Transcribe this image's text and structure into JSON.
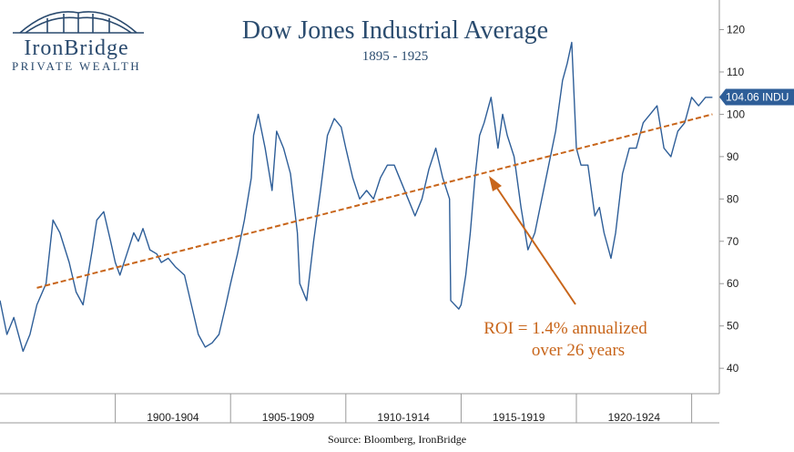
{
  "logo": {
    "name": "IronBridge",
    "tagline": "PRIVATE WEALTH"
  },
  "chart_data": {
    "type": "line",
    "title": "Dow Jones Industrial Average",
    "subtitle": "1895 - 1925",
    "ylim": [
      34,
      127
    ],
    "y_ticks": [
      40,
      50,
      60,
      70,
      80,
      90,
      100,
      110,
      120
    ],
    "x_range": [
      1895.0,
      1926.2
    ],
    "period_labels": [
      {
        "label": "1900-1904",
        "from": 1900.0,
        "to": 1905.0
      },
      {
        "label": "1905-1909",
        "from": 1905.0,
        "to": 1910.0
      },
      {
        "label": "1910-1914",
        "from": 1910.0,
        "to": 1915.0
      },
      {
        "label": "1915-1919",
        "from": 1915.0,
        "to": 1920.0
      },
      {
        "label": "1920-1924",
        "from": 1920.0,
        "to": 1925.0
      }
    ],
    "series": [
      {
        "values_x": [
          1895.0,
          1895.3,
          1895.6,
          1896.0,
          1896.3,
          1896.6,
          1897.0,
          1897.3,
          1897.6,
          1898.0,
          1898.3,
          1898.6,
          1899.0,
          1899.2,
          1899.5,
          1899.8,
          1900.0,
          1900.2,
          1900.5,
          1900.8,
          1901.0,
          1901.2,
          1901.5,
          1901.8,
          1902.0,
          1902.3,
          1902.6,
          1903.0,
          1903.3,
          1903.6,
          1903.9,
          1904.2,
          1904.5,
          1904.8,
          1905.0,
          1905.3,
          1905.6,
          1905.9,
          1906.0,
          1906.2,
          1906.5,
          1906.8,
          1907.0,
          1907.3,
          1907.6,
          1907.9,
          1908.0,
          1908.3,
          1908.6,
          1908.9,
          1909.2,
          1909.5,
          1909.8,
          1910.0,
          1910.3,
          1910.6,
          1910.9,
          1911.2,
          1911.5,
          1911.8,
          1912.1,
          1912.4,
          1912.7,
          1913.0,
          1913.3,
          1913.6,
          1913.9,
          1914.2,
          1914.5,
          1914.55,
          1914.9,
          1915.0,
          1915.2,
          1915.4,
          1915.6,
          1915.8,
          1916.0,
          1916.3,
          1916.6,
          1916.8,
          1917.0,
          1917.3,
          1917.6,
          1917.9,
          1918.2,
          1918.5,
          1918.8,
          1919.1,
          1919.4,
          1919.6,
          1919.8,
          1920.0,
          1920.2,
          1920.5,
          1920.8,
          1921.0,
          1921.2,
          1921.5,
          1921.7,
          1922.0,
          1922.3,
          1922.6,
          1922.9,
          1923.2,
          1923.5,
          1923.8,
          1924.1,
          1924.4,
          1924.7,
          1925.0,
          1925.3,
          1925.6,
          1925.9
        ],
        "values_y": [
          56,
          48,
          52,
          44,
          48,
          55,
          60,
          75,
          72,
          65,
          58,
          55,
          68,
          75,
          77,
          70,
          65,
          62,
          67,
          72,
          70,
          73,
          68,
          67,
          65,
          66,
          64,
          62,
          55,
          48,
          45,
          46,
          48,
          55,
          60,
          67,
          75,
          85,
          95,
          100,
          92,
          82,
          96,
          92,
          86,
          72,
          60,
          56,
          70,
          82,
          95,
          99,
          97,
          92,
          85,
          80,
          82,
          80,
          85,
          88,
          88,
          84,
          80,
          76,
          80,
          87,
          92,
          85,
          80,
          56,
          54,
          55,
          62,
          72,
          85,
          95,
          98,
          104,
          92,
          100,
          95,
          90,
          78,
          68,
          72,
          80,
          88,
          96,
          108,
          112,
          117,
          92,
          88,
          88,
          76,
          78,
          72,
          66,
          72,
          86,
          92,
          92,
          98,
          100,
          102,
          92,
          90,
          96,
          98,
          104,
          102,
          104,
          104
        ]
      }
    ],
    "trendline": {
      "from": [
        1896.6,
        59
      ],
      "to": [
        1925.9,
        100
      ]
    },
    "last_value_label": "104.06 INDU",
    "annotation": {
      "line1": "ROI = 1.4% annualized",
      "line2": "over 26 years"
    },
    "colors": {
      "line": "#2e5e98",
      "trend": "#c8651a",
      "label_bg": "#2e5e98",
      "title": "#2b4c6f"
    },
    "source": "Source: Bloomberg, IronBridge"
  }
}
